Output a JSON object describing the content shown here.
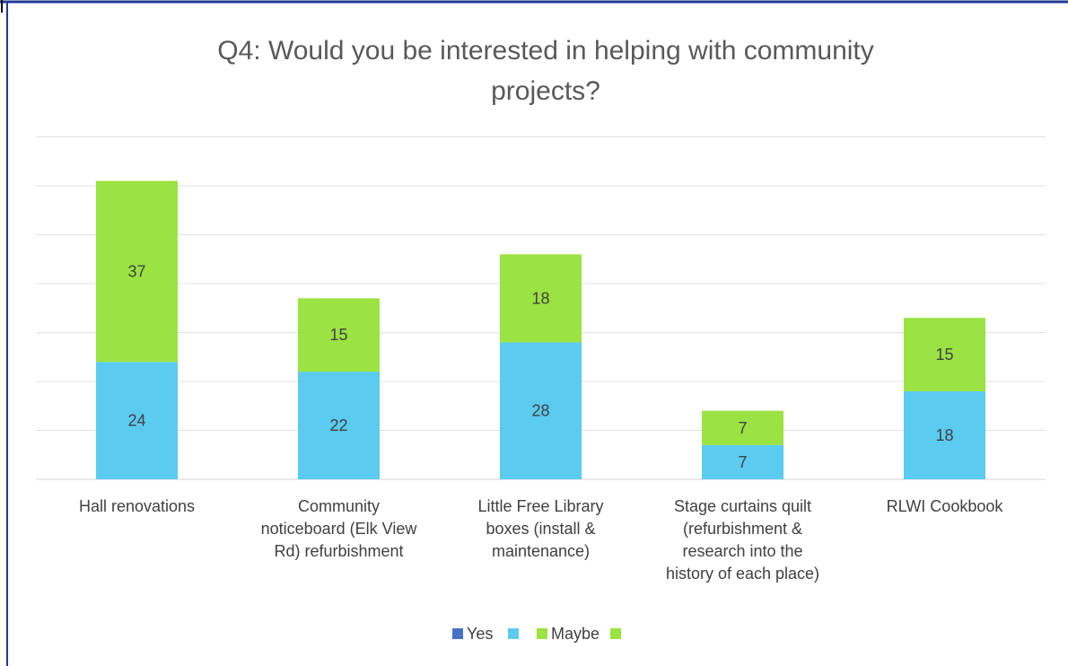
{
  "chart_data": {
    "type": "bar",
    "stacked": true,
    "title_lines": [
      "Q4: Would you be interested in helping with community",
      "projects?"
    ],
    "categories": [
      [
        "Hall renovations"
      ],
      [
        "Community",
        "noticeboard (Elk View",
        "Rd) refurbishment"
      ],
      [
        "Little Free Library",
        "boxes (install &",
        "maintenance)"
      ],
      [
        "Stage curtains quilt",
        "(refurbishment &",
        "research into the",
        "history of each place)"
      ],
      [
        "RLWI Cookbook"
      ]
    ],
    "series": [
      {
        "name": "Yes",
        "values": [
          0,
          0,
          0,
          0,
          0
        ],
        "color": "#4472C4"
      },
      {
        "name": "",
        "values": [
          24,
          22,
          28,
          7,
          18
        ],
        "color": "#5BCBF0"
      },
      {
        "name": "Maybe",
        "values": [
          0,
          0,
          0,
          0,
          0
        ],
        "color": "#9BE342"
      },
      {
        "name": "",
        "values": [
          37,
          15,
          18,
          7,
          15
        ],
        "color": "#9BE342"
      }
    ],
    "ylim": [
      0,
      70
    ],
    "grid": true,
    "legend": "bottom"
  }
}
